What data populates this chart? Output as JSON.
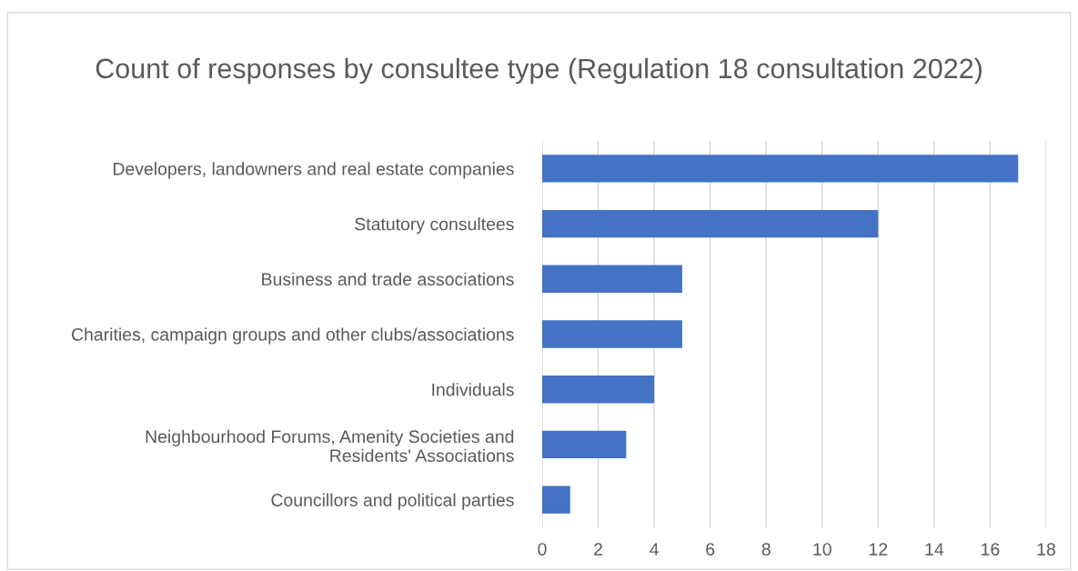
{
  "chart_data": {
    "type": "bar",
    "orientation": "horizontal",
    "title": "Count of responses by consultee type (Regulation 18 consultation 2022)",
    "categories": [
      "Developers, landowners and real estate companies",
      "Statutory consultees",
      "Business and trade associations",
      "Charities, campaign groups and other clubs/associations",
      "Individuals",
      "Neighbourhood Forums, Amenity Societies and\nResidents' Associations",
      "Councillors and political parties"
    ],
    "values": [
      17,
      12,
      5,
      5,
      4,
      3,
      1
    ],
    "color": "#4472c4",
    "xlim": [
      0,
      18
    ],
    "xticks": [
      0,
      2,
      4,
      6,
      8,
      10,
      12,
      14,
      16,
      18
    ],
    "grid": "x"
  }
}
